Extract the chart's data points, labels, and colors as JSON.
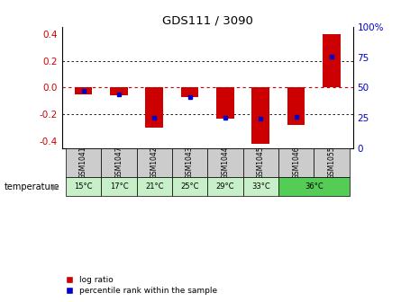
{
  "title": "GDS111 / 3090",
  "samples": [
    "GSM1041",
    "GSM1047",
    "GSM1042",
    "GSM1043",
    "GSM1044",
    "GSM1045",
    "GSM1046",
    "GSM1055"
  ],
  "temp_labels_full": [
    "15°C",
    "17°C",
    "21°C",
    "25°C",
    "29°C",
    "33°C",
    "36°C",
    "36°C"
  ],
  "log_ratios": [
    -0.05,
    -0.06,
    -0.3,
    -0.07,
    -0.23,
    -0.42,
    -0.28,
    0.4
  ],
  "percentile_ranks": [
    47,
    44,
    22,
    41,
    22,
    21,
    23,
    79
  ],
  "bar_color": "#CC0000",
  "percentile_color": "#0000CC",
  "ylim": [
    -0.45,
    0.45
  ],
  "y2lim": [
    0,
    100
  ],
  "yticks": [
    -0.4,
    -0.2,
    0.0,
    0.2,
    0.4
  ],
  "y2ticks": [
    0,
    25,
    50,
    75,
    100
  ],
  "temp_colors_light": "#c8f0c8",
  "temp_colors_dark": "#55cc55",
  "temp_dark_value": "36°C",
  "bg_color": "#ffffff",
  "label_bg": "#cccccc",
  "bar_width": 0.5,
  "legend_log_ratio": "log ratio",
  "legend_percentile": "percentile rank within the sample"
}
